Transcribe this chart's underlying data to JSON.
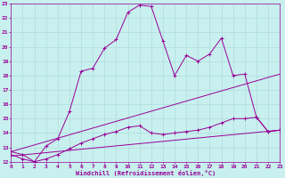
{
  "background_color": "#c8f0ee",
  "grid_color": "#a8d8d8",
  "line_color": "#990099",
  "xlim": [
    0,
    23
  ],
  "ylim": [
    12,
    23
  ],
  "xticks": [
    0,
    1,
    2,
    3,
    4,
    5,
    6,
    7,
    8,
    9,
    10,
    11,
    12,
    13,
    14,
    15,
    16,
    17,
    18,
    19,
    20,
    21,
    22,
    23
  ],
  "yticks": [
    12,
    13,
    14,
    15,
    16,
    17,
    18,
    19,
    20,
    21,
    22,
    23
  ],
  "xlabel": "Windchill (Refroidissement éolien,°C)",
  "line1_x": [
    0,
    1,
    2,
    3,
    4,
    5,
    6,
    7,
    8,
    9,
    10,
    11,
    12,
    13,
    14,
    15,
    16,
    17,
    18,
    19,
    20,
    21,
    22,
    23
  ],
  "line1_y": [
    12.7,
    12.5,
    12.0,
    13.1,
    13.6,
    15.5,
    18.3,
    18.5,
    19.9,
    20.5,
    22.4,
    22.9,
    22.8,
    20.4,
    18.0,
    19.4,
    19.0,
    19.5,
    20.6,
    18.0,
    18.1,
    15.1,
    14.1,
    14.2
  ],
  "line2_x": [
    0,
    23
  ],
  "line2_y": [
    12.7,
    18.1
  ],
  "line3_x": [
    0,
    1,
    2,
    3,
    4,
    5,
    6,
    7,
    8,
    9,
    10,
    11,
    12,
    13,
    14,
    15,
    16,
    17,
    18,
    19,
    20,
    21,
    22,
    23
  ],
  "line3_y": [
    12.5,
    12.2,
    12.0,
    12.2,
    12.5,
    12.9,
    13.3,
    13.6,
    13.9,
    14.1,
    14.4,
    14.5,
    14.0,
    13.9,
    14.0,
    14.1,
    14.2,
    14.4,
    14.7,
    15.0,
    15.0,
    15.1,
    14.1,
    14.2
  ],
  "line4_x": [
    0,
    23
  ],
  "line4_y": [
    12.4,
    14.2
  ]
}
